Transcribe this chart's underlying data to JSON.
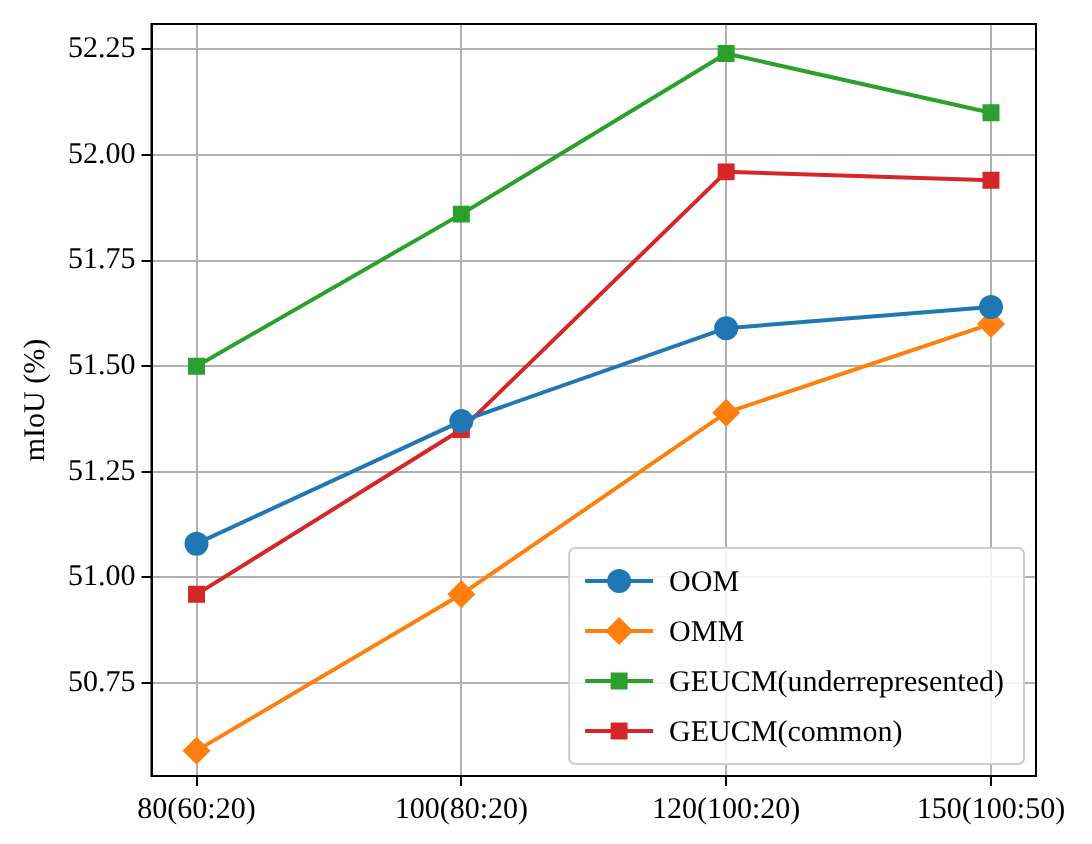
{
  "chart_data": {
    "type": "line",
    "ylabel": "mIoU (%)",
    "categories": [
      "80(60:20)",
      "100(80:20)",
      "120(100:20)",
      "150(100:50)"
    ],
    "series": [
      {
        "name": "OOM",
        "color": "#1f77b4",
        "marker": "circle",
        "values": [
          51.08,
          51.37,
          51.59,
          51.64
        ]
      },
      {
        "name": "OMM",
        "color": "#ff7f0e",
        "marker": "diamond",
        "values": [
          50.59,
          50.96,
          51.39,
          51.6
        ]
      },
      {
        "name": "GEUCM(underrepresented)",
        "color": "#2ca02c",
        "marker": "square",
        "values": [
          51.5,
          51.86,
          52.24,
          52.1
        ]
      },
      {
        "name": "GEUCM(common)",
        "color": "#d62728",
        "marker": "square",
        "values": [
          50.96,
          51.35,
          51.96,
          51.94
        ]
      }
    ],
    "ylim": [
      50.53,
      52.31
    ],
    "yticks": [
      {
        "value": 50.75,
        "label": "50.75"
      },
      {
        "value": 51.0,
        "label": "51.00"
      },
      {
        "value": 51.25,
        "label": "51.25"
      },
      {
        "value": 51.5,
        "label": "51.50"
      },
      {
        "value": 51.75,
        "label": "51.75"
      },
      {
        "value": 52.0,
        "label": "52.00"
      },
      {
        "value": 52.25,
        "label": "52.25"
      }
    ],
    "grid": true,
    "legend": "bottom right"
  }
}
